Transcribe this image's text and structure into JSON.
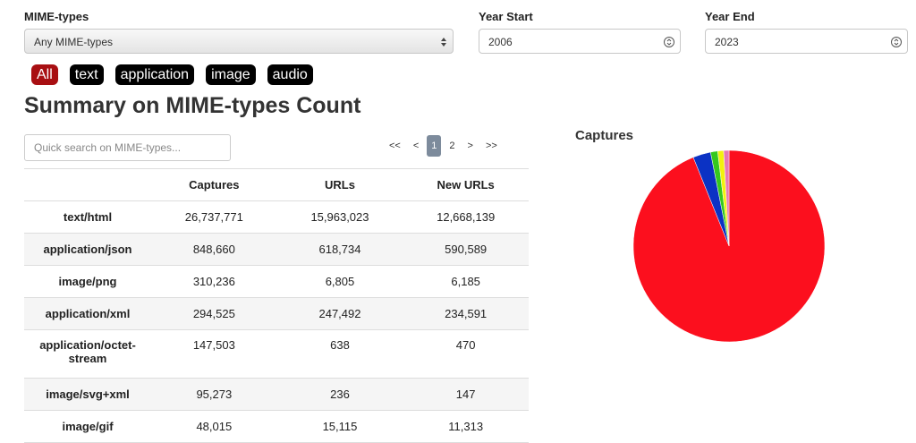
{
  "filters": {
    "mime_label": "MIME-types",
    "mime_select": "Any MIME-types",
    "year_start_label": "Year Start",
    "year_start": "2006",
    "year_end_label": "Year End",
    "year_end": "2023"
  },
  "tags": [
    "All",
    "text",
    "application",
    "image",
    "audio"
  ],
  "heading": "Summary on MIME-types Count",
  "search_placeholder": "Quick search on MIME-types...",
  "pagination": [
    "<<",
    "<",
    "1",
    "2",
    ">",
    ">>"
  ],
  "table": {
    "columns": [
      "Captures",
      "URLs",
      "New URLs"
    ],
    "rows": [
      [
        "text/html",
        "26,737,771",
        "15,963,023",
        "12,668,139"
      ],
      [
        "application/json",
        "848,660",
        "618,734",
        "590,589"
      ],
      [
        "image/png",
        "310,236",
        "6,805",
        "6,185"
      ],
      [
        "application/xml",
        "294,525",
        "247,492",
        "234,591"
      ],
      [
        "application/octet-stream",
        "147,503",
        "638",
        "470"
      ],
      [
        "image/svg+xml",
        "95,273",
        "236",
        "147"
      ],
      [
        "image/gif",
        "48,015",
        "15,115",
        "11,313"
      ]
    ]
  },
  "chart_data": {
    "type": "pie",
    "title": "Captures",
    "values": [
      93.9,
      3.0,
      1.2,
      1.0,
      0.9
    ],
    "colors": [
      "#fc0f1e",
      "#0b32c4",
      "#35c81e",
      "#f2f20e",
      "#e678b4"
    ]
  }
}
